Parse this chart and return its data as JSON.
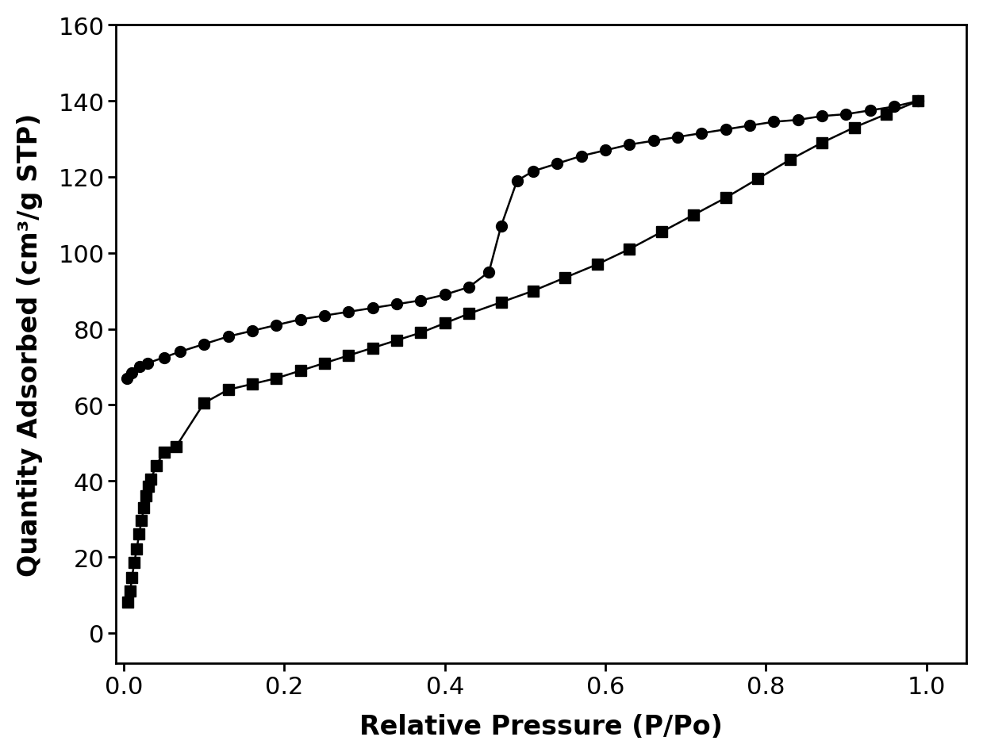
{
  "adsorption_x": [
    0.004,
    0.01,
    0.02,
    0.03,
    0.05,
    0.07,
    0.1,
    0.13,
    0.16,
    0.19,
    0.22,
    0.25,
    0.28,
    0.31,
    0.34,
    0.37,
    0.4,
    0.43,
    0.455,
    0.47,
    0.49,
    0.51,
    0.54,
    0.57,
    0.6,
    0.63,
    0.66,
    0.69,
    0.72,
    0.75,
    0.78,
    0.81,
    0.84,
    0.87,
    0.9,
    0.93,
    0.96,
    0.99
  ],
  "adsorption_y": [
    67.0,
    68.5,
    70.0,
    71.0,
    72.5,
    74.0,
    76.0,
    78.0,
    79.5,
    81.0,
    82.5,
    83.5,
    84.5,
    85.5,
    86.5,
    87.5,
    89.0,
    91.0,
    95.0,
    107.0,
    119.0,
    121.5,
    123.5,
    125.5,
    127.0,
    128.5,
    129.5,
    130.5,
    131.5,
    132.5,
    133.5,
    134.5,
    135.0,
    136.0,
    136.5,
    137.5,
    138.5,
    140.0
  ],
  "desorption_x": [
    0.005,
    0.008,
    0.01,
    0.013,
    0.016,
    0.019,
    0.022,
    0.025,
    0.028,
    0.031,
    0.034,
    0.04,
    0.05,
    0.065,
    0.1,
    0.13,
    0.16,
    0.19,
    0.22,
    0.25,
    0.28,
    0.31,
    0.34,
    0.37,
    0.4,
    0.43,
    0.47,
    0.51,
    0.55,
    0.59,
    0.63,
    0.67,
    0.71,
    0.75,
    0.79,
    0.83,
    0.87,
    0.91,
    0.95,
    0.99
  ],
  "desorption_y": [
    8.0,
    11.0,
    14.5,
    18.5,
    22.0,
    26.0,
    29.5,
    33.0,
    36.0,
    38.5,
    40.5,
    44.0,
    47.5,
    49.0,
    60.5,
    64.0,
    65.5,
    67.0,
    69.0,
    71.0,
    73.0,
    75.0,
    77.0,
    79.0,
    81.5,
    84.0,
    87.0,
    90.0,
    93.5,
    97.0,
    101.0,
    105.5,
    110.0,
    114.5,
    119.5,
    124.5,
    129.0,
    133.0,
    136.5,
    140.0
  ],
  "xlabel": "Relative Pressure (P/Po)",
  "ylabel": "Quantity Adsorbed (cm³/g STP)",
  "xlim": [
    -0.01,
    1.05
  ],
  "ylim": [
    -8,
    160
  ],
  "xticks": [
    0.0,
    0.2,
    0.4,
    0.6,
    0.8,
    1.0
  ],
  "yticks": [
    0,
    20,
    40,
    60,
    80,
    100,
    120,
    140,
    160
  ],
  "line_color": "#000000",
  "marker_circle": "o",
  "marker_square": "s",
  "marker_size": 10,
  "linewidth": 1.8,
  "xlabel_fontsize": 24,
  "ylabel_fontsize": 24,
  "tick_fontsize": 22,
  "background_color": "#ffffff"
}
